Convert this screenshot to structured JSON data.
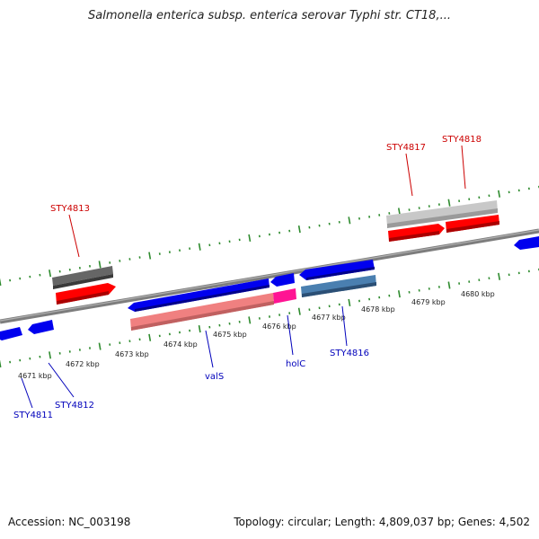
{
  "title": "Salmonella enterica subsp. enterica serovar Typhi str. CT18,...",
  "footer": {
    "accession": "Accession: NC_003198",
    "summary": "Topology: circular; Length: 4,809,037 bp; Genes: 4,502"
  },
  "colors": {
    "backbone": "#8a8a8a",
    "tick": "#2e8b2e",
    "forward_gene": "#ff0000",
    "reverse_gene": "#0000ee",
    "forward_label": "#cc0000",
    "reverse_label": "#0000bb",
    "grey_feature": "#666666",
    "light_grey_feature": "#c8c8c8",
    "pink_feature": "#f08080",
    "magenta_feature": "#ff1493",
    "steel_feature": "#4a7fb0"
  },
  "tick_labels": [
    "4671 kbp",
    "4672 kbp",
    "4673 kbp",
    "4674 kbp",
    "4675 kbp",
    "4676 kbp",
    "4677 kbp",
    "4678 kbp",
    "4679 kbp",
    "4680 kbp"
  ],
  "forward_labels": [
    "STY4813",
    "STY4817",
    "STY4818"
  ],
  "reverse_labels": [
    "STY4811",
    "STY4812",
    "valS",
    "holC",
    "STY4816"
  ]
}
